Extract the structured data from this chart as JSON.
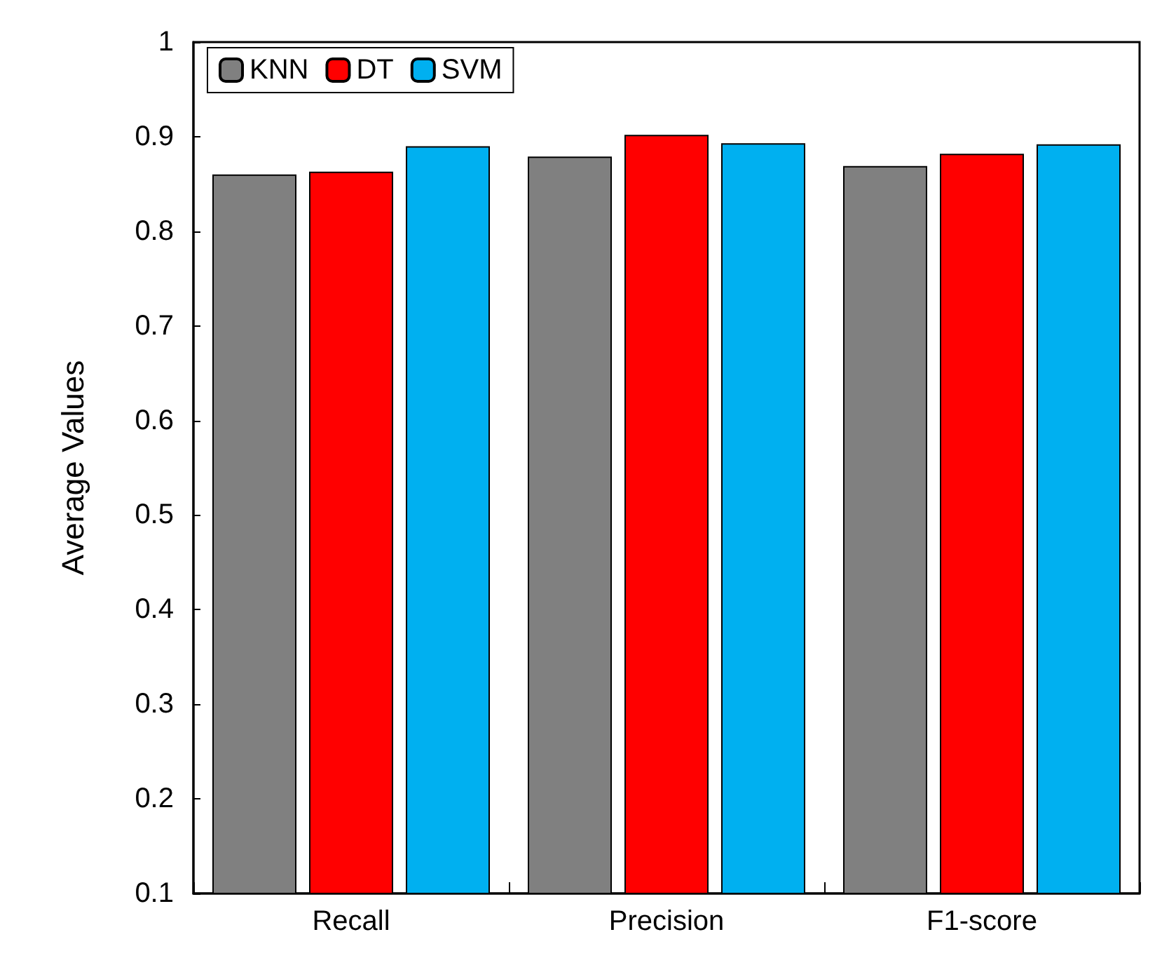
{
  "chart_data": {
    "type": "bar",
    "ylabel": "Average Values",
    "categories": [
      "Recall",
      "Precision",
      "F1-score"
    ],
    "series": [
      {
        "name": "KNN",
        "color": "#808080",
        "values": [
          0.86,
          0.879,
          0.869
        ]
      },
      {
        "name": "DT",
        "color": "#ff0000",
        "values": [
          0.863,
          0.902,
          0.882
        ]
      },
      {
        "name": "SVM",
        "color": "#00b0f0",
        "values": [
          0.89,
          0.893,
          0.892
        ]
      }
    ],
    "ylim": [
      0.1,
      1
    ],
    "yticks": [
      0.1,
      0.2,
      0.3,
      0.4,
      0.5,
      0.6,
      0.7,
      0.8,
      0.9,
      1
    ],
    "grid": false,
    "legend": "top left"
  }
}
